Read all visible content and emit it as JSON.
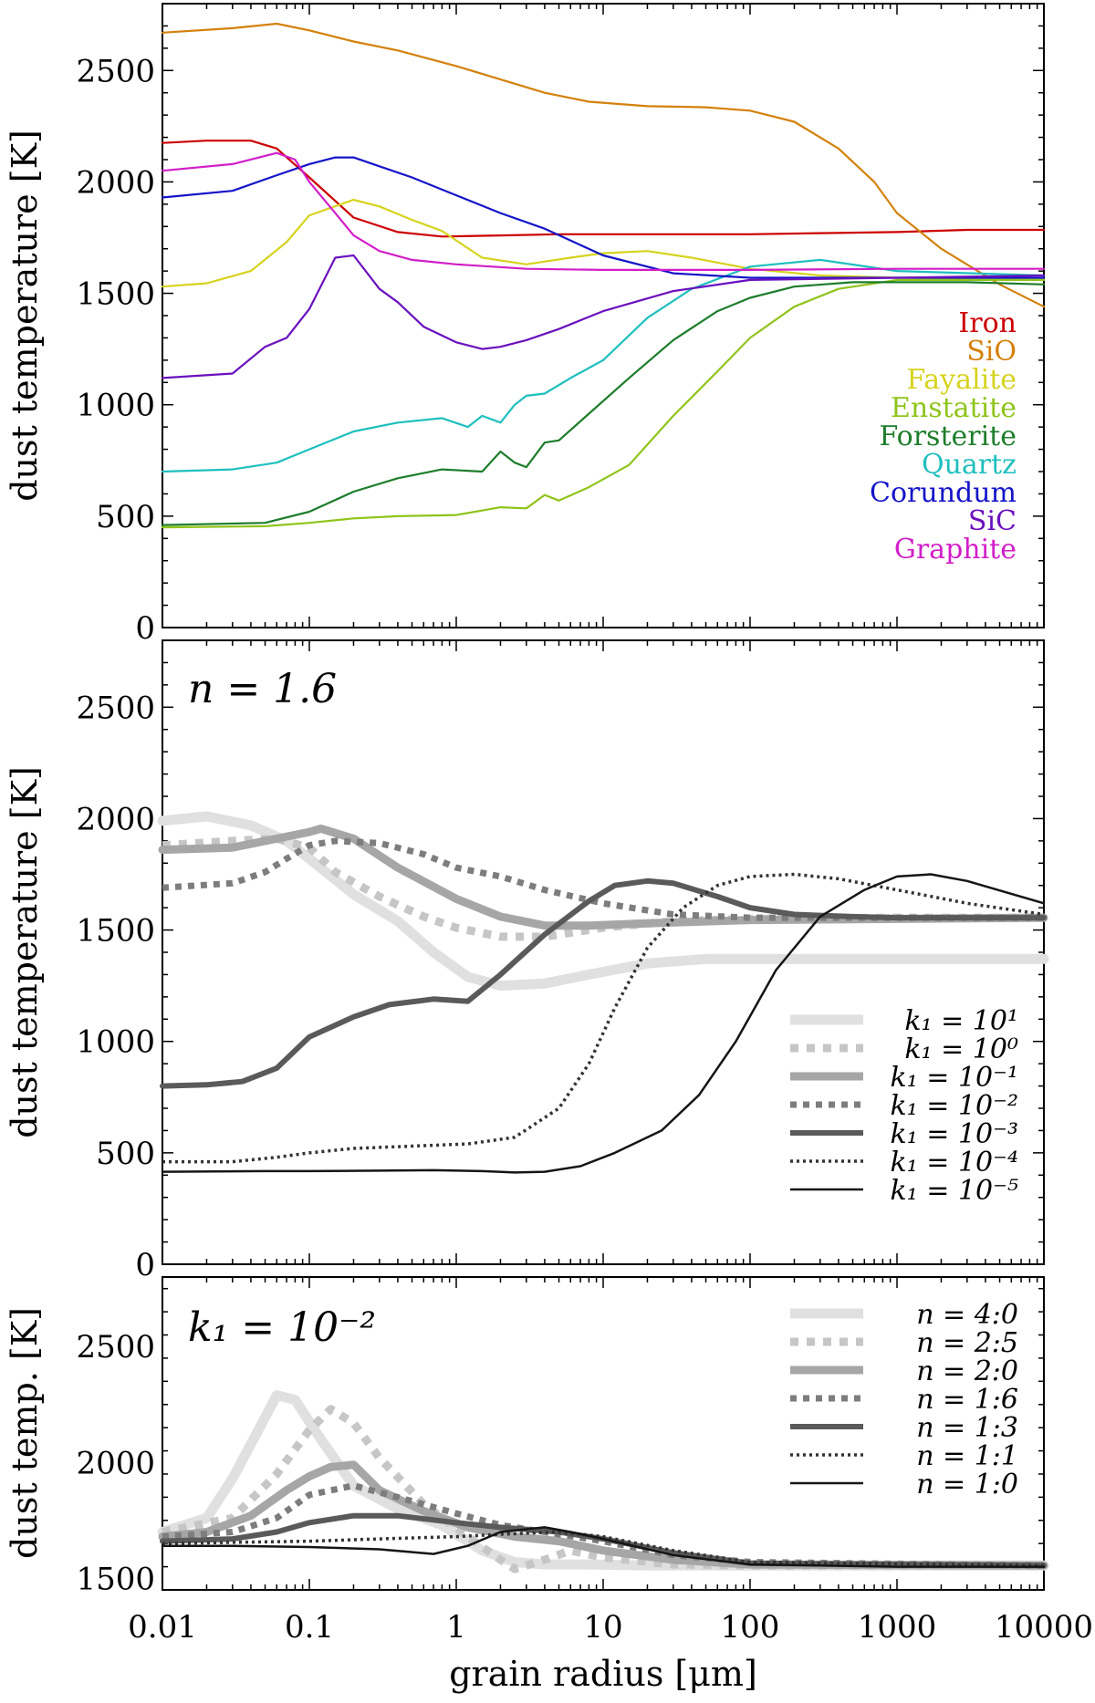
{
  "chart_data": [
    {
      "type": "line",
      "id": "p1",
      "annotation": "",
      "ylabel": "dust temperature [K]",
      "xscale": "log",
      "xlim": [
        0.01,
        10000
      ],
      "ylim": [
        0,
        2800
      ],
      "yticks": [
        0,
        500,
        1000,
        1500,
        2000,
        2500
      ],
      "legend": "right, stacked colored text",
      "series": [
        {
          "name": "Iron",
          "color": "#cc0000",
          "width": 2.2,
          "dash": "solid",
          "x": [
            0.01,
            0.02,
            0.04,
            0.06,
            0.1,
            0.2,
            0.4,
            0.8,
            2,
            5,
            10,
            30,
            100,
            300,
            1000,
            3000,
            10000
          ],
          "y": [
            2175,
            2185,
            2185,
            2150,
            2020,
            1840,
            1775,
            1755,
            1760,
            1765,
            1765,
            1765,
            1765,
            1770,
            1775,
            1785,
            1785
          ]
        },
        {
          "name": "SiO",
          "color": "#d4810b",
          "width": 2.2,
          "dash": "solid",
          "x": [
            0.01,
            0.03,
            0.06,
            0.1,
            0.2,
            0.4,
            1,
            2,
            4,
            8,
            20,
            50,
            100,
            200,
            400,
            700,
            1000,
            2000,
            5000,
            10000
          ],
          "y": [
            2670,
            2690,
            2710,
            2680,
            2630,
            2590,
            2520,
            2460,
            2400,
            2360,
            2340,
            2335,
            2320,
            2270,
            2150,
            2000,
            1860,
            1700,
            1540,
            1440
          ]
        },
        {
          "name": "Fayalite",
          "color": "#d6d31e",
          "width": 2.2,
          "dash": "solid",
          "x": [
            0.01,
            0.02,
            0.04,
            0.07,
            0.1,
            0.2,
            0.3,
            0.5,
            0.8,
            1.5,
            3,
            6,
            10,
            20,
            40,
            100,
            300,
            1000,
            10000
          ],
          "y": [
            1530,
            1545,
            1600,
            1730,
            1850,
            1920,
            1890,
            1830,
            1780,
            1660,
            1630,
            1660,
            1680,
            1690,
            1660,
            1610,
            1580,
            1570,
            1560
          ]
        },
        {
          "name": "Enstatite",
          "color": "#8fc41a",
          "width": 2.2,
          "dash": "solid",
          "x": [
            0.01,
            0.05,
            0.1,
            0.2,
            0.4,
            1,
            2,
            3,
            4,
            5,
            8,
            15,
            30,
            60,
            100,
            200,
            400,
            1000,
            2000,
            10000
          ],
          "y": [
            450,
            455,
            470,
            490,
            500,
            505,
            540,
            535,
            595,
            570,
            630,
            730,
            950,
            1150,
            1300,
            1440,
            1520,
            1560,
            1560,
            1560
          ]
        },
        {
          "name": "Forsterite",
          "color": "#1d7d2b",
          "width": 2.2,
          "dash": "solid",
          "x": [
            0.01,
            0.05,
            0.1,
            0.2,
            0.4,
            0.8,
            1.5,
            2,
            2.5,
            3,
            4,
            5,
            8,
            15,
            30,
            60,
            100,
            200,
            500,
            1000,
            3000,
            10000
          ],
          "y": [
            460,
            470,
            520,
            610,
            670,
            710,
            700,
            790,
            740,
            720,
            830,
            840,
            960,
            1120,
            1290,
            1420,
            1480,
            1530,
            1550,
            1550,
            1550,
            1540
          ]
        },
        {
          "name": "Quartz",
          "color": "#1fbfbf",
          "width": 2.2,
          "dash": "solid",
          "x": [
            0.01,
            0.03,
            0.06,
            0.1,
            0.2,
            0.4,
            0.8,
            1.2,
            1.5,
            2,
            2.5,
            3,
            4,
            6,
            10,
            20,
            40,
            100,
            300,
            1000,
            10000
          ],
          "y": [
            700,
            710,
            740,
            800,
            880,
            920,
            940,
            900,
            950,
            920,
            1000,
            1040,
            1050,
            1120,
            1200,
            1390,
            1520,
            1620,
            1650,
            1600,
            1580
          ]
        },
        {
          "name": "Corundum",
          "color": "#1414c8",
          "width": 2.2,
          "dash": "solid",
          "x": [
            0.01,
            0.03,
            0.06,
            0.1,
            0.15,
            0.2,
            0.3,
            0.5,
            1,
            2,
            4,
            10,
            30,
            100,
            1000,
            10000
          ],
          "y": [
            1930,
            1960,
            2030,
            2080,
            2110,
            2110,
            2070,
            2020,
            1940,
            1860,
            1790,
            1670,
            1590,
            1570,
            1570,
            1570
          ]
        },
        {
          "name": "SiC",
          "color": "#6a10be",
          "width": 2.2,
          "dash": "solid",
          "x": [
            0.01,
            0.03,
            0.05,
            0.07,
            0.1,
            0.15,
            0.2,
            0.3,
            0.4,
            0.6,
            1,
            1.5,
            2,
            3,
            5,
            10,
            30,
            100,
            1000,
            10000
          ],
          "y": [
            1120,
            1140,
            1260,
            1300,
            1430,
            1660,
            1670,
            1520,
            1460,
            1350,
            1280,
            1250,
            1260,
            1290,
            1340,
            1420,
            1510,
            1560,
            1570,
            1580
          ]
        },
        {
          "name": "Graphite",
          "color": "#d21ec8",
          "width": 2.2,
          "dash": "solid",
          "x": [
            0.01,
            0.03,
            0.06,
            0.08,
            0.1,
            0.15,
            0.2,
            0.3,
            0.5,
            1,
            3,
            10,
            100,
            1000,
            10000
          ],
          "y": [
            2050,
            2080,
            2130,
            2100,
            2000,
            1860,
            1760,
            1690,
            1650,
            1630,
            1610,
            1605,
            1605,
            1610,
            1610
          ]
        }
      ]
    },
    {
      "type": "line",
      "id": "p2",
      "annotation": "n = 1.6",
      "ylabel": "dust temperature [K]",
      "xscale": "log",
      "xlim": [
        0.01,
        10000
      ],
      "ylim": [
        0,
        2800
      ],
      "yticks": [
        0,
        500,
        1000,
        1500,
        2000,
        2500
      ],
      "legend": "lower-right",
      "series": [
        {
          "name": "k₁ = 10¹",
          "base": "10",
          "exp": "1",
          "color": "#e0e0e0",
          "width": 11,
          "dash": "solid",
          "x": [
            0.01,
            0.02,
            0.04,
            0.07,
            0.1,
            0.2,
            0.4,
            0.7,
            1.2,
            2,
            4,
            8,
            20,
            50,
            100,
            300,
            1000,
            10000
          ],
          "y": [
            1990,
            2010,
            1970,
            1900,
            1820,
            1660,
            1540,
            1400,
            1290,
            1250,
            1260,
            1300,
            1350,
            1370,
            1370,
            1370,
            1370,
            1370
          ]
        },
        {
          "name": "k₁ = 10⁰",
          "base": "10",
          "exp": "0",
          "color": "#c6c6c6",
          "width": 9,
          "dash": "9 9",
          "x": [
            0.01,
            0.03,
            0.06,
            0.1,
            0.15,
            0.3,
            0.6,
            1,
            2,
            4,
            10,
            30,
            100,
            1000,
            10000
          ],
          "y": [
            1880,
            1900,
            1910,
            1870,
            1760,
            1650,
            1560,
            1510,
            1470,
            1470,
            1510,
            1540,
            1550,
            1555,
            1555
          ]
        },
        {
          "name": "k₁ = 10⁻¹",
          "base": "10",
          "exp": "−1",
          "color": "#a6a6a6",
          "width": 9,
          "dash": "solid",
          "x": [
            0.01,
            0.03,
            0.06,
            0.1,
            0.12,
            0.2,
            0.4,
            1,
            2,
            4,
            8,
            20,
            100,
            1000,
            10000
          ],
          "y": [
            1860,
            1870,
            1910,
            1940,
            1955,
            1910,
            1780,
            1640,
            1560,
            1520,
            1520,
            1530,
            1545,
            1550,
            1555
          ]
        },
        {
          "name": "k₁ = 10⁻²",
          "base": "10",
          "exp": "−2",
          "color": "#7d7d7d",
          "width": 7,
          "dash": "7 7",
          "x": [
            0.01,
            0.03,
            0.05,
            0.07,
            0.1,
            0.15,
            0.3,
            0.6,
            1,
            2,
            4,
            10,
            30,
            100,
            1000,
            10000
          ],
          "y": [
            1690,
            1710,
            1760,
            1820,
            1880,
            1900,
            1890,
            1840,
            1780,
            1740,
            1680,
            1620,
            1570,
            1555,
            1555,
            1555
          ]
        },
        {
          "name": "k₁ = 10⁻³",
          "base": "10",
          "exp": "−3",
          "color": "#5a5a5a",
          "width": 6,
          "dash": "solid",
          "x": [
            0.01,
            0.02,
            0.035,
            0.06,
            0.1,
            0.2,
            0.35,
            0.7,
            1.2,
            2,
            4,
            8,
            12,
            20,
            30,
            60,
            100,
            200,
            500,
            1000,
            10000
          ],
          "y": [
            800,
            805,
            820,
            880,
            1020,
            1110,
            1165,
            1190,
            1180,
            1300,
            1480,
            1630,
            1700,
            1720,
            1710,
            1650,
            1600,
            1570,
            1560,
            1555,
            1555
          ]
        },
        {
          "name": "k₁ = 10⁻⁴",
          "base": "10",
          "exp": "−4",
          "color": "#333333",
          "width": 3.5,
          "dash": "3 4",
          "x": [
            0.01,
            0.03,
            0.06,
            0.1,
            0.2,
            0.5,
            1.2,
            2.5,
            5,
            8,
            12,
            20,
            35,
            60,
            100,
            200,
            400,
            1000,
            3000,
            10000
          ],
          "y": [
            460,
            460,
            480,
            500,
            520,
            530,
            540,
            570,
            700,
            900,
            1150,
            1420,
            1600,
            1700,
            1740,
            1750,
            1730,
            1680,
            1620,
            1570
          ]
        },
        {
          "name": "k₁ = 10⁻⁵",
          "base": "10",
          "exp": "−5",
          "color": "#151515",
          "width": 2.5,
          "dash": "solid",
          "x": [
            0.01,
            0.05,
            0.1,
            0.3,
            0.7,
            1.5,
            2.5,
            4,
            7,
            12,
            25,
            45,
            80,
            150,
            300,
            600,
            1000,
            1700,
            3000,
            10000
          ],
          "y": [
            415,
            418,
            418,
            420,
            422,
            418,
            412,
            415,
            440,
            500,
            600,
            760,
            1000,
            1320,
            1560,
            1680,
            1740,
            1750,
            1720,
            1620
          ]
        }
      ]
    },
    {
      "type": "line",
      "id": "p3",
      "annotation": "k₁ = 10⁻²",
      "ylabel": "dust temp. [K]",
      "xlabel": "grain radius [μm]",
      "xscale": "log",
      "xlim": [
        0.01,
        10000
      ],
      "xticks": [
        0.01,
        0.1,
        1,
        10,
        100,
        1000,
        10000
      ],
      "xtick_labels": [
        "0.01",
        "0.1",
        "1",
        "10",
        "100",
        "1000",
        "10000"
      ],
      "ylim": [
        1450,
        2800
      ],
      "yticks": [
        1500,
        2000,
        2500
      ],
      "legend": "top-right",
      "series": [
        {
          "name": "n = 4:0",
          "color": "#e0e0e0",
          "width": 11,
          "dash": "solid",
          "x": [
            0.01,
            0.02,
            0.03,
            0.045,
            0.06,
            0.08,
            0.12,
            0.2,
            0.4,
            0.8,
            1.5,
            2.5,
            4,
            8,
            20,
            100,
            1000,
            10000
          ],
          "y": [
            1700,
            1760,
            1930,
            2140,
            2290,
            2270,
            2100,
            1900,
            1800,
            1730,
            1620,
            1570,
            1560,
            1560,
            1555,
            1555,
            1555,
            1555
          ]
        },
        {
          "name": "n = 2:5",
          "color": "#c6c6c6",
          "width": 9,
          "dash": "9 9",
          "x": [
            0.01,
            0.03,
            0.06,
            0.1,
            0.14,
            0.2,
            0.3,
            0.6,
            1.2,
            2,
            2.5,
            4,
            6,
            10,
            30,
            100,
            10000
          ],
          "y": [
            1700,
            1760,
            1950,
            2140,
            2230,
            2170,
            2020,
            1820,
            1680,
            1580,
            1540,
            1580,
            1620,
            1590,
            1560,
            1555,
            1555
          ]
        },
        {
          "name": "n = 2:0",
          "color": "#a6a6a6",
          "width": 9,
          "dash": "solid",
          "x": [
            0.01,
            0.02,
            0.04,
            0.07,
            0.1,
            0.14,
            0.2,
            0.3,
            0.6,
            1.2,
            2.5,
            5,
            10,
            30,
            100,
            10000
          ],
          "y": [
            1680,
            1700,
            1770,
            1880,
            1940,
            1980,
            1990,
            1880,
            1790,
            1720,
            1680,
            1660,
            1620,
            1580,
            1560,
            1555
          ]
        },
        {
          "name": "n = 1:6",
          "color": "#7d7d7d",
          "width": 7,
          "dash": "7 7",
          "x": [
            0.01,
            0.03,
            0.06,
            0.1,
            0.2,
            0.4,
            1,
            2,
            4,
            10,
            30,
            100,
            10000
          ],
          "y": [
            1680,
            1700,
            1760,
            1860,
            1900,
            1850,
            1780,
            1730,
            1700,
            1660,
            1600,
            1570,
            1555
          ]
        },
        {
          "name": "n = 1:3",
          "color": "#5a5a5a",
          "width": 6,
          "dash": "solid",
          "x": [
            0.01,
            0.03,
            0.06,
            0.1,
            0.2,
            0.4,
            1,
            2,
            5,
            10,
            30,
            100,
            10000
          ],
          "y": [
            1660,
            1670,
            1700,
            1740,
            1770,
            1770,
            1740,
            1720,
            1700,
            1670,
            1610,
            1565,
            1555
          ]
        },
        {
          "name": "n = 1:1",
          "color": "#333333",
          "width": 3.5,
          "dash": "3 4",
          "x": [
            0.01,
            0.03,
            0.1,
            0.3,
            1,
            2,
            5,
            10,
            30,
            100,
            10000
          ],
          "y": [
            1650,
            1655,
            1660,
            1670,
            1680,
            1690,
            1700,
            1680,
            1620,
            1570,
            1555
          ]
        },
        {
          "name": "n = 1:0",
          "color": "#151515",
          "width": 2.5,
          "dash": "solid",
          "x": [
            0.01,
            0.03,
            0.1,
            0.3,
            0.7,
            1.2,
            2,
            4,
            6,
            10,
            30,
            100,
            1000,
            10000
          ],
          "y": [
            1640,
            1640,
            1635,
            1625,
            1605,
            1640,
            1700,
            1720,
            1700,
            1670,
            1600,
            1560,
            1550,
            1550
          ]
        }
      ]
    }
  ]
}
